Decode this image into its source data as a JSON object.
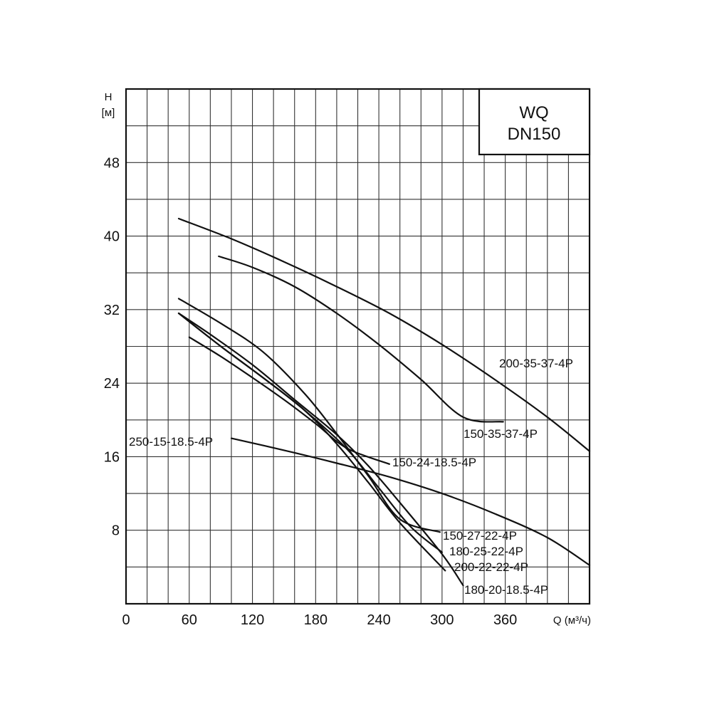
{
  "chart_data": {
    "type": "line",
    "title_lines": [
      "WQ",
      "DN150"
    ],
    "ylabel_lines": [
      "H",
      "[м]"
    ],
    "xlabel": "Q (м³/ч)",
    "x_ticks": [
      0,
      60,
      120,
      180,
      240,
      300,
      360
    ],
    "y_ticks": [
      8,
      16,
      24,
      32,
      40,
      48
    ],
    "xlim": [
      0,
      440
    ],
    "ylim": [
      0,
      56
    ],
    "grid": true,
    "series": [
      {
        "name": "200-35-37-4P",
        "x": [
          50,
          100,
          150,
          200,
          250,
          300,
          350,
          400,
          440
        ],
        "y": [
          41.9,
          39.7,
          37.2,
          34.5,
          31.6,
          28.2,
          24.4,
          20.3,
          16.6
        ]
      },
      {
        "name": "150-35-37-4P",
        "x": [
          88,
          120,
          160,
          200,
          240,
          280,
          320,
          358
        ],
        "y": [
          37.8,
          36.6,
          34.5,
          31.6,
          28.2,
          24.4,
          20.3,
          19.8
        ]
      },
      {
        "name": "150-24-18.5-4P",
        "x": [
          60,
          90,
          120,
          150,
          180,
          210,
          250
        ],
        "y": [
          29.0,
          26.9,
          24.6,
          22.2,
          19.6,
          16.9,
          15.2
        ]
      },
      {
        "name": "150-27-22-4P",
        "x": [
          50,
          90,
          130,
          170,
          200,
          230,
          260,
          298
        ],
        "y": [
          33.2,
          30.5,
          27.4,
          22.8,
          18.5,
          13.9,
          9.2,
          7.8
        ]
      },
      {
        "name": "180-25-22-4P",
        "x": [
          50,
          90,
          130,
          170,
          210,
          240,
          270,
          300
        ],
        "y": [
          31.6,
          28.0,
          24.6,
          21.0,
          16.8,
          12.6,
          8.4,
          5.6
        ]
      },
      {
        "name": "200-22-22-4P",
        "x": [
          50,
          90,
          130,
          170,
          200,
          230,
          260,
          303
        ],
        "y": [
          31.6,
          28.0,
          24.6,
          21.0,
          17.4,
          13.2,
          8.8,
          3.6
        ]
      },
      {
        "name": "180-20-18.5-4P",
        "x": [
          50,
          80,
          120,
          160,
          200,
          230,
          260,
          300,
          320
        ],
        "y": [
          31.6,
          29.3,
          26.0,
          22.2,
          18.4,
          15.0,
          11.0,
          5.4,
          2.0
        ]
      },
      {
        "name": "250-15-18.5-4P",
        "x": [
          100,
          150,
          200,
          250,
          300,
          350,
          400,
          440
        ],
        "y": [
          18.0,
          16.7,
          15.3,
          13.8,
          12.0,
          9.8,
          7.2,
          4.2
        ]
      }
    ],
    "curve_labels": [
      {
        "series": "200-35-37-4P",
        "text": "200-35-37-4P"
      },
      {
        "series": "150-35-37-4P",
        "text": "150-35-37-4P"
      },
      {
        "series": "150-24-18.5-4P",
        "text": "150-24-18.5-4P"
      },
      {
        "series": "150-27-22-4P",
        "text": "150-27-22-4P"
      },
      {
        "series": "180-25-22-4P",
        "text": "180-25-22-4P"
      },
      {
        "series": "200-22-22-4P",
        "text": "200-22-22-4P"
      },
      {
        "series": "180-20-18.5-4P",
        "text": "180-20-18.5-4P"
      },
      {
        "series": "250-15-18.5-4P",
        "text": "250-15-18.5-4P"
      }
    ]
  }
}
